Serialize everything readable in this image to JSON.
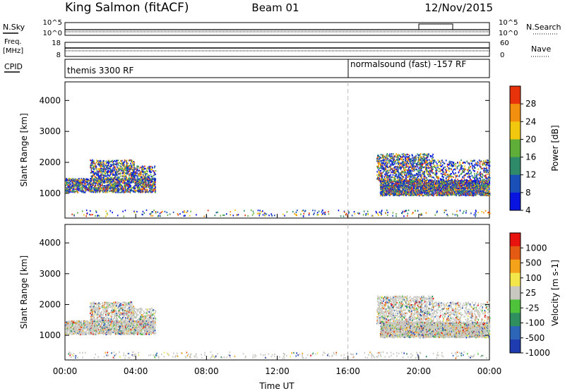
{
  "header": {
    "station": "King Salmon (fitACF)",
    "beam": "Beam 01",
    "date": "12/Nov/2015"
  },
  "strip_labels": {
    "nsky": "N.Sky",
    "nsky_ticks": [
      "10^5",
      "10^0"
    ],
    "nsearch": "N.Search",
    "nsearch_ticks": [
      "10^5",
      "10^0"
    ],
    "freq_top": "Freq.",
    "freq_unit": "[MHz]",
    "freq_ticks": [
      "18",
      "8"
    ],
    "nave": "Nave",
    "nave_ticks": [
      "60",
      "0"
    ],
    "cpid": "CPID"
  },
  "cpid_segments": [
    {
      "label": "themis 3300 RF",
      "start_hour": 0
    },
    {
      "label": "normalsound (fast) -157 RF",
      "start_hour": 16
    }
  ],
  "chart_data": [
    {
      "type": "heatmap",
      "quantity": "power",
      "ylabel": "Slant Range [km]",
      "ylim": [
        200,
        4600
      ],
      "yticks": [
        1000,
        2000,
        3000,
        4000
      ],
      "xlabel": "",
      "xlim_hours": [
        0,
        24
      ],
      "colorbar_label": "Power [dB]",
      "colorbar_ticks": [
        "28",
        "24",
        "20",
        "16",
        "12",
        "8",
        "4"
      ],
      "colorbar_colors": [
        "#0a14e0",
        "#1b4fb8",
        "#2f8a6a",
        "#5fae3a",
        "#f2c80f",
        "#f28f0f",
        "#e8320c"
      ],
      "scatter_regions": [
        {
          "t0": 0.0,
          "t1": 5.1,
          "r0": 1050,
          "r1": 1500,
          "density": 0.55
        },
        {
          "t0": 1.4,
          "t1": 3.9,
          "r0": 1450,
          "r1": 2100,
          "density": 0.35
        },
        {
          "t0": 3.7,
          "t1": 5.1,
          "r0": 1450,
          "r1": 1900,
          "density": 0.3
        },
        {
          "t0": 17.8,
          "t1": 24.0,
          "r0": 950,
          "r1": 1450,
          "density": 0.75
        },
        {
          "t0": 17.6,
          "t1": 20.8,
          "r0": 1400,
          "r1": 2300,
          "density": 0.35
        },
        {
          "t0": 20.8,
          "t1": 24.0,
          "r0": 1450,
          "r1": 2100,
          "density": 0.2
        },
        {
          "t0": 0.0,
          "t1": 24.0,
          "r0": 280,
          "r1": 480,
          "density": 0.06
        }
      ]
    },
    {
      "type": "heatmap",
      "quantity": "velocity",
      "ylabel": "Slant Range [km]",
      "ylim": [
        200,
        4600
      ],
      "yticks": [
        1000,
        2000,
        3000,
        4000
      ],
      "xlabel": "Time UT",
      "xlim_hours": [
        0,
        24
      ],
      "xtick_labels": [
        "00:00",
        "04:00",
        "08:00",
        "12:00",
        "16:00",
        "20:00",
        "00:00"
      ],
      "colorbar_label": "Velocity [m s-1]",
      "colorbar_ticks": [
        "1000",
        "500",
        "100",
        "25",
        "-25",
        "-100",
        "-500",
        "-1000"
      ],
      "colorbar_colors": [
        "#1f3bb0",
        "#2d66b8",
        "#2f8f5f",
        "#4fc23c",
        "#c8c8c0",
        "#f3e64a",
        "#f4a21a",
        "#e45a12",
        "#e8120e"
      ],
      "scatter_regions": [
        {
          "t0": 0.0,
          "t1": 5.1,
          "r0": 1050,
          "r1": 1500,
          "density": 0.6
        },
        {
          "t0": 1.4,
          "t1": 3.9,
          "r0": 1450,
          "r1": 2100,
          "density": 0.35
        },
        {
          "t0": 3.7,
          "t1": 5.1,
          "r0": 1450,
          "r1": 1900,
          "density": 0.3
        },
        {
          "t0": 17.8,
          "t1": 24.0,
          "r0": 950,
          "r1": 1450,
          "density": 0.8
        },
        {
          "t0": 17.6,
          "t1": 20.8,
          "r0": 1400,
          "r1": 2300,
          "density": 0.35
        },
        {
          "t0": 20.8,
          "t1": 24.0,
          "r0": 1450,
          "r1": 2100,
          "density": 0.2
        },
        {
          "t0": 0.0,
          "t1": 24.0,
          "r0": 280,
          "r1": 480,
          "density": 0.06
        }
      ]
    }
  ]
}
